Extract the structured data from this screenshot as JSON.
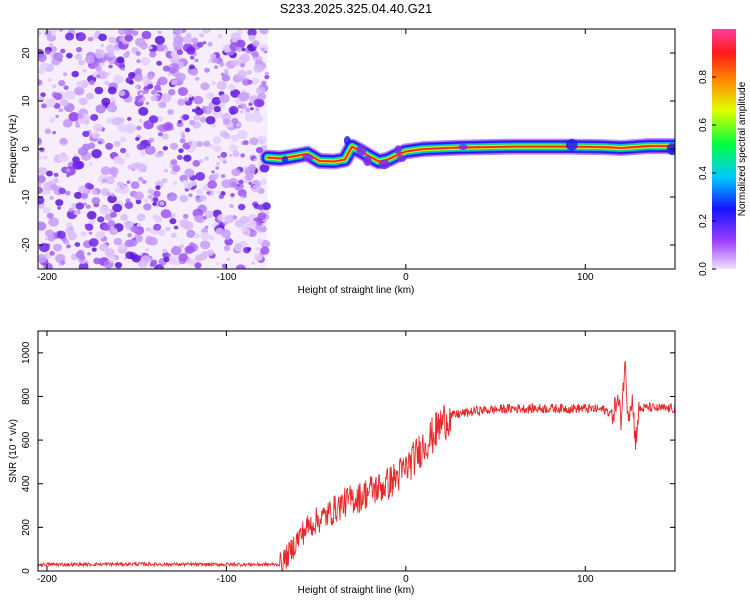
{
  "title": "S233.2025.325.04.40.G21",
  "chart_data": [
    {
      "type": "heatmap",
      "xlabel": "Height of straight line (km)",
      "ylabel": "Frequency (Hz)",
      "xlim": [
        -205,
        150
      ],
      "ylim": [
        -25,
        25
      ],
      "xticks": [
        "-200",
        "-100",
        "0",
        "100"
      ],
      "xtick_values": [
        -200,
        -100,
        0,
        100
      ],
      "yticks": [
        "-20",
        "-10",
        "0",
        "10",
        "20"
      ],
      "ytick_values": [
        -20,
        -10,
        0,
        10,
        20
      ],
      "noise_region_x": [
        -205,
        -77
      ],
      "ridge": [
        {
          "x": -77,
          "f": -1.8
        },
        {
          "x": -70,
          "f": -2.0
        },
        {
          "x": -62,
          "f": -1.5
        },
        {
          "x": -55,
          "f": -1.0
        },
        {
          "x": -48,
          "f": -2.5
        },
        {
          "x": -40,
          "f": -2.6
        },
        {
          "x": -34,
          "f": -2.2
        },
        {
          "x": -30,
          "f": 0.5
        },
        {
          "x": -25,
          "f": -0.5
        },
        {
          "x": -20,
          "f": -1.6
        },
        {
          "x": -15,
          "f": -2.6
        },
        {
          "x": -10,
          "f": -2.2
        },
        {
          "x": -5,
          "f": -1.3
        },
        {
          "x": 0,
          "f": -0.5
        },
        {
          "x": 10,
          "f": 0.0
        },
        {
          "x": 30,
          "f": 0.3
        },
        {
          "x": 60,
          "f": 0.5
        },
        {
          "x": 90,
          "f": 0.5
        },
        {
          "x": 110,
          "f": 0.4
        },
        {
          "x": 120,
          "f": 0.2
        },
        {
          "x": 135,
          "f": 0.6
        },
        {
          "x": 150,
          "f": 0.6
        }
      ]
    },
    {
      "type": "line",
      "xlabel": "Height of straight line (km)",
      "ylabel": "SNR (10 * v/v)",
      "xlim": [
        -205,
        150
      ],
      "ylim": [
        0,
        1100
      ],
      "xticks": [
        "-200",
        "-100",
        "0",
        "100"
      ],
      "xtick_values": [
        -200,
        -100,
        0,
        100
      ],
      "yticks": [
        "0",
        "200",
        "400",
        "600",
        "800",
        "1000"
      ],
      "ytick_values": [
        0,
        200,
        400,
        600,
        800,
        1000
      ],
      "series": [
        {
          "name": "SNR",
          "color": "#e8292b",
          "points": [
            [
              -205,
              30
            ],
            [
              -180,
              30
            ],
            [
              -150,
              32
            ],
            [
              -120,
              30
            ],
            [
              -100,
              30
            ],
            [
              -80,
              30
            ],
            [
              -70,
              30
            ],
            [
              -65,
              80
            ],
            [
              -60,
              150
            ],
            [
              -55,
              200
            ],
            [
              -50,
              230
            ],
            [
              -45,
              250
            ],
            [
              -40,
              280
            ],
            [
              -35,
              310
            ],
            [
              -30,
              330
            ],
            [
              -25,
              340
            ],
            [
              -20,
              370
            ],
            [
              -15,
              380
            ],
            [
              -10,
              400
            ],
            [
              -5,
              430
            ],
            [
              0,
              470
            ],
            [
              5,
              520
            ],
            [
              10,
              580
            ],
            [
              15,
              620
            ],
            [
              20,
              680
            ],
            [
              25,
              710
            ],
            [
              30,
              720
            ],
            [
              40,
              735
            ],
            [
              60,
              745
            ],
            [
              80,
              745
            ],
            [
              100,
              745
            ],
            [
              110,
              740
            ],
            [
              115,
              720
            ],
            [
              118,
              780
            ],
            [
              120,
              700
            ],
            [
              122,
              950
            ],
            [
              124,
              720
            ],
            [
              126,
              800
            ],
            [
              128,
              600
            ],
            [
              130,
              740
            ],
            [
              135,
              750
            ],
            [
              140,
              745
            ],
            [
              150,
              745
            ]
          ]
        }
      ]
    }
  ],
  "colorbar": {
    "label": "Normalized spectral amplitude",
    "ticks": [
      "0.0",
      "0.2",
      "0.4",
      "0.6",
      "0.8"
    ],
    "tick_values": [
      0.0,
      0.2,
      0.4,
      0.6,
      0.8
    ],
    "range": [
      0,
      1
    ],
    "colors": [
      "#f2e0ff",
      "#9a3cff",
      "#1414ff",
      "#00c8ff",
      "#00ff40",
      "#e0ff00",
      "#ff9000",
      "#ff1a1a",
      "#ff40a0"
    ]
  }
}
